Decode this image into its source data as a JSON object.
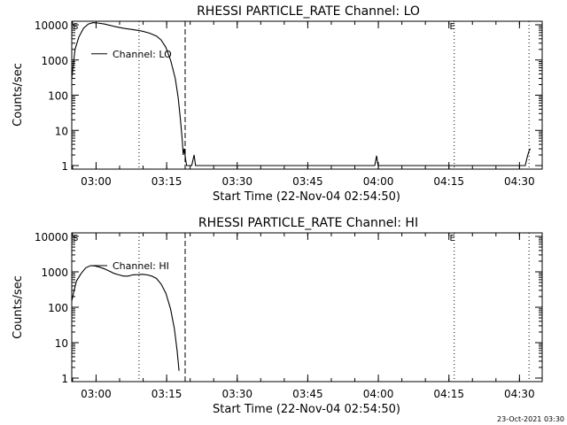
{
  "footer": {
    "timestamp": "23-Oct-2021 03:30"
  },
  "chart_data": [
    {
      "type": "line",
      "title": "RHESSI PARTICLE_RATE Channel: LO",
      "xlabel": "Start Time (22-Nov-04 02:54:50)",
      "ylabel": "Counts/sec",
      "x_units": "minutes since 02:54:50",
      "y_scale": "log",
      "ylim": [
        1,
        10000
      ],
      "xlim": [
        0,
        100
      ],
      "x_ticks": [
        {
          "value": 5.17,
          "label": "03:00"
        },
        {
          "value": 20.17,
          "label": "03:15"
        },
        {
          "value": 35.17,
          "label": "03:30"
        },
        {
          "value": 50.17,
          "label": "03:45"
        },
        {
          "value": 65.17,
          "label": "04:00"
        },
        {
          "value": 80.17,
          "label": "04:15"
        },
        {
          "value": 95.17,
          "label": "04:30"
        }
      ],
      "y_ticks": [
        {
          "value": 1,
          "label": "1"
        },
        {
          "value": 10,
          "label": "10"
        },
        {
          "value": 100,
          "label": "100"
        },
        {
          "value": 1000,
          "label": "1000"
        },
        {
          "value": 10000,
          "label": "10000"
        }
      ],
      "grid": false,
      "legend": {
        "position": "top-left",
        "label": "Channel: LO"
      },
      "markers": [
        {
          "x": 0.4,
          "label": "S"
        },
        {
          "x": 81.3,
          "label": "E"
        }
      ],
      "vlines": [
        {
          "x": 14.3,
          "style": "dotted"
        },
        {
          "x": 24.1,
          "style": "dashed"
        },
        {
          "x": 81.3,
          "style": "dotted"
        },
        {
          "x": 97.2,
          "style": "dotted"
        }
      ],
      "series": [
        {
          "values": [
            [
              0,
              300
            ],
            [
              0.7,
              2000
            ],
            [
              1.5,
              4500
            ],
            [
              2.5,
              8000
            ],
            [
              3.5,
              10500
            ],
            [
              4.5,
              11500
            ],
            [
              5.5,
              11200
            ],
            [
              7,
              10500
            ],
            [
              9,
              9000
            ],
            [
              11,
              8000
            ],
            [
              13,
              7300
            ],
            [
              15,
              6600
            ],
            [
              16.5,
              5800
            ],
            [
              18,
              4800
            ],
            [
              19,
              3700
            ],
            [
              20,
              2300
            ],
            [
              21,
              1000
            ],
            [
              22,
              300
            ],
            [
              22.6,
              90
            ],
            [
              23.1,
              20
            ],
            [
              23.5,
              5
            ],
            [
              23.7,
              2
            ],
            [
              23.9,
              3
            ],
            [
              24.2,
              1.5
            ],
            [
              24.4,
              1
            ],
            [
              25.5,
              1
            ],
            [
              26,
              2
            ],
            [
              26.3,
              1
            ],
            [
              64.4,
              1
            ],
            [
              64.8,
              1.9
            ],
            [
              65.1,
              1
            ],
            [
              96.4,
              1
            ],
            [
              96.8,
              1.7
            ],
            [
              97.2,
              2.6
            ],
            [
              97.5,
              3
            ]
          ]
        }
      ]
    },
    {
      "type": "line",
      "title": "RHESSI PARTICLE_RATE Channel: HI",
      "xlabel": "Start Time (22-Nov-04 02:54:50)",
      "ylabel": "Counts/sec",
      "x_units": "minutes since 02:54:50",
      "y_scale": "log",
      "ylim": [
        1,
        10000
      ],
      "xlim": [
        0,
        100
      ],
      "x_ticks": [
        {
          "value": 5.17,
          "label": "03:00"
        },
        {
          "value": 20.17,
          "label": "03:15"
        },
        {
          "value": 35.17,
          "label": "03:30"
        },
        {
          "value": 50.17,
          "label": "03:45"
        },
        {
          "value": 65.17,
          "label": "04:00"
        },
        {
          "value": 80.17,
          "label": "04:15"
        },
        {
          "value": 95.17,
          "label": "04:30"
        }
      ],
      "y_ticks": [
        {
          "value": 1,
          "label": "1"
        },
        {
          "value": 10,
          "label": "10"
        },
        {
          "value": 100,
          "label": "100"
        },
        {
          "value": 1000,
          "label": "1000"
        },
        {
          "value": 10000,
          "label": "10000"
        }
      ],
      "grid": false,
      "legend": {
        "position": "top-left",
        "label": "Channel: HI"
      },
      "markers": [
        {
          "x": 0.4,
          "label": "S"
        },
        {
          "x": 81.3,
          "label": "E"
        }
      ],
      "vlines": [
        {
          "x": 14.3,
          "style": "dotted"
        },
        {
          "x": 24.1,
          "style": "dashed"
        },
        {
          "x": 81.3,
          "style": "dotted"
        },
        {
          "x": 97.2,
          "style": "dotted"
        }
      ],
      "series": [
        {
          "values": [
            [
              0,
              150
            ],
            [
              0.5,
              300
            ],
            [
              1,
              550
            ],
            [
              2,
              900
            ],
            [
              3,
              1300
            ],
            [
              4,
              1500
            ],
            [
              5,
              1450
            ],
            [
              6,
              1350
            ],
            [
              7,
              1200
            ],
            [
              8,
              1050
            ],
            [
              9,
              900
            ],
            [
              10,
              820
            ],
            [
              11,
              760
            ],
            [
              12,
              760
            ],
            [
              13,
              820
            ],
            [
              14,
              830
            ],
            [
              15,
              850
            ],
            [
              16,
              820
            ],
            [
              17,
              760
            ],
            [
              18,
              650
            ],
            [
              19,
              450
            ],
            [
              20,
              250
            ],
            [
              21,
              90
            ],
            [
              21.8,
              25
            ],
            [
              22.4,
              6
            ],
            [
              22.8,
              1.6
            ]
          ]
        }
      ]
    }
  ]
}
